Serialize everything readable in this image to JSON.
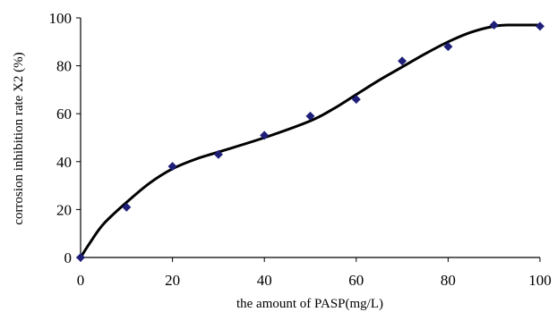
{
  "chart_data": {
    "type": "scatter",
    "title": "",
    "xlabel": "the amount of PASP(mg/L)",
    "ylabel": "corrosion inhibition rate X2 (%)",
    "xlim": [
      0,
      100
    ],
    "ylim": [
      0,
      100
    ],
    "x_ticks": [
      "0",
      "20",
      "40",
      "60",
      "80",
      "100"
    ],
    "y_ticks": [
      "0",
      "20",
      "40",
      "60",
      "80",
      "100"
    ],
    "grid": false,
    "legend": "none",
    "series": [
      {
        "type": "scatter",
        "marker": "diamond",
        "color": "#1f1f7a",
        "x": [
          0,
          10,
          20,
          30,
          40,
          50,
          60,
          70,
          80,
          90,
          100
        ],
        "y": [
          0,
          21,
          38,
          43,
          51,
          59,
          66,
          82,
          88,
          97,
          96.5
        ]
      },
      {
        "type": "line",
        "color": "#000000",
        "x": [
          0,
          2,
          5,
          10,
          15,
          20,
          25,
          30,
          40,
          50,
          55,
          60,
          65,
          70,
          75,
          80,
          85,
          90,
          93,
          100
        ],
        "y": [
          0,
          6,
          14,
          23,
          31,
          37,
          41,
          44,
          50,
          57,
          62,
          68,
          74,
          79.5,
          85,
          90,
          94,
          96.5,
          97,
          97
        ]
      }
    ]
  }
}
